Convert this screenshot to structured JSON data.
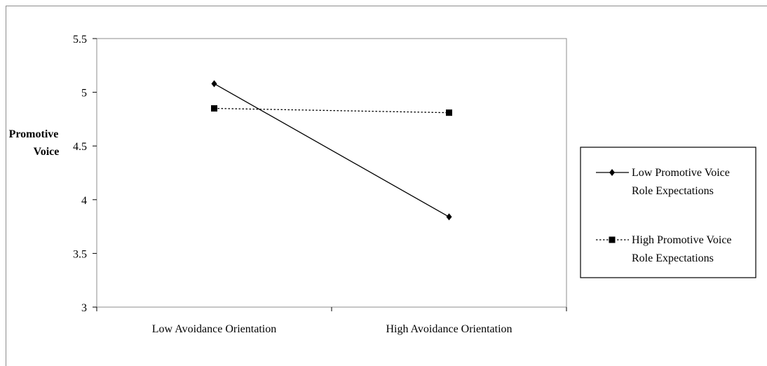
{
  "chart_data": {
    "type": "line",
    "ylabel": [
      "Promotive",
      "Voice"
    ],
    "xlabel": "",
    "categories": [
      "Low Avoidance Orientation",
      "High Avoidance Orientation"
    ],
    "ylim": [
      3,
      5.5
    ],
    "yticks": [
      "3",
      "3.5",
      "4",
      "4.5",
      "5",
      "5.5"
    ],
    "grid": false,
    "legend_position": "right",
    "series": [
      {
        "name_lines": [
          "Low Promotive Voice",
          "Role Expectations"
        ],
        "values": [
          5.08,
          3.84
        ],
        "marker": "diamond",
        "line": "solid",
        "color": "#000000"
      },
      {
        "name_lines": [
          "High Promotive Voice",
          "Role Expectations"
        ],
        "values": [
          4.85,
          4.81
        ],
        "marker": "square",
        "line": "dotted",
        "color": "#000000"
      }
    ]
  }
}
